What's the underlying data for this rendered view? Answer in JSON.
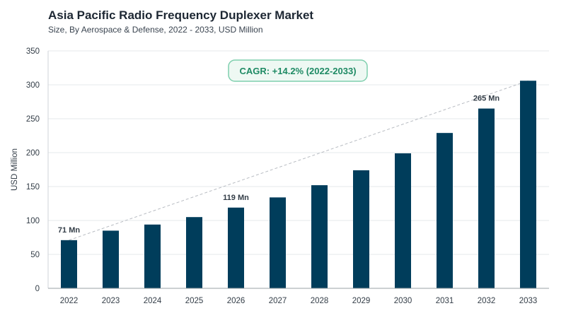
{
  "header": {
    "title": "Asia Pacific Radio Frequency Duplexer Market",
    "subtitle": "Size, By Aerospace & Defense, 2022 - 2033, USD Million"
  },
  "colors": {
    "bar": "#003d5b",
    "grid": "#e6e8eb",
    "trend": "#b8bcc2",
    "cagr_border": "#7fcfae",
    "cagr_fill": "#eef8f3",
    "cagr_text": "#1e8a64"
  },
  "chart_data": {
    "type": "bar",
    "title": "Asia Pacific Radio Frequency Duplexer Market",
    "subtitle": "Size, By Aerospace & Defense, 2022 - 2033, USD Million",
    "xlabel": "",
    "ylabel": "USD Million",
    "ylim": [
      0,
      350
    ],
    "yticks": [
      0,
      50,
      100,
      150,
      200,
      250,
      300,
      350
    ],
    "grid": true,
    "categories": [
      "2022",
      "2023",
      "2024",
      "2025",
      "2026",
      "2027",
      "2028",
      "2029",
      "2030",
      "2031",
      "2032",
      "2033"
    ],
    "values": [
      71,
      85,
      94,
      105,
      119,
      134,
      152,
      174,
      199,
      229,
      265,
      306
    ],
    "data_labels": [
      {
        "category": "2022",
        "text": "71 Mn"
      },
      {
        "category": "2026",
        "text": "119 Mn"
      },
      {
        "category": "2032",
        "text": "265 Mn"
      }
    ],
    "annotation": "CAGR: +14.2% (2022-2033)",
    "trendline": {
      "style": "dashed",
      "from": "2022",
      "to": "2033"
    }
  }
}
